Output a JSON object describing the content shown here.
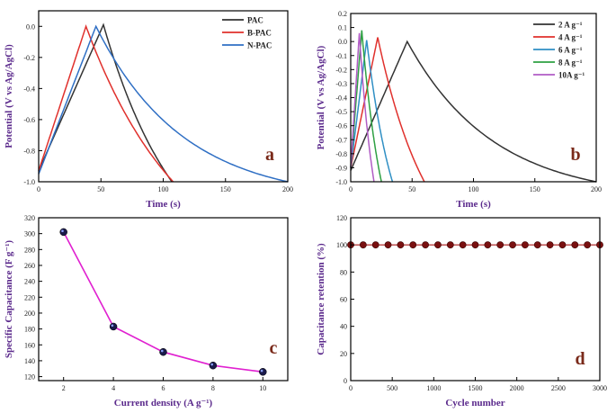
{
  "chart_data": [
    {
      "panel": "a",
      "type": "line",
      "xlabel": "Time (s)",
      "ylabel": "Potential  (V vs Ag/AgCl)",
      "xlim": [
        0,
        200
      ],
      "ylim": [
        -1.0,
        0.1
      ],
      "xticks": [
        0,
        50,
        100,
        150,
        200
      ],
      "yticks": [
        0.0,
        -0.2,
        -0.4,
        -0.6,
        -0.8,
        -1.0
      ],
      "series": [
        {
          "name": "PAC",
          "color": "#333333",
          "x": [
            0,
            52,
            107
          ],
          "y": [
            -0.93,
            0.01,
            -1.0
          ]
        },
        {
          "name": "B-PAC",
          "color": "#e0302c",
          "x": [
            0,
            38,
            108
          ],
          "y": [
            -0.93,
            0.0,
            -1.0
          ]
        },
        {
          "name": "N-PAC",
          "color": "#2f6fc4",
          "x": [
            0,
            46,
            200
          ],
          "y": [
            -0.95,
            0.0,
            -1.0
          ]
        }
      ]
    },
    {
      "panel": "b",
      "type": "line",
      "xlabel": "Time (s)",
      "ylabel": "Potential  (V vs Ag/AgCl)",
      "xlim": [
        0,
        200
      ],
      "ylim": [
        -1.0,
        0.2
      ],
      "xticks": [
        0,
        50,
        100,
        150,
        200
      ],
      "yticks": [
        0.2,
        0.1,
        0.0,
        -0.1,
        -0.2,
        -0.3,
        -0.4,
        -0.5,
        -0.6,
        -0.7,
        -0.8,
        -0.9,
        -1.0
      ],
      "series": [
        {
          "name": "2 A g⁻¹",
          "color": "#333333",
          "x": [
            0,
            46,
            200
          ],
          "y": [
            -0.92,
            0.0,
            -1.0
          ]
        },
        {
          "name": "4 A g⁻¹",
          "color": "#e0302c",
          "x": [
            0,
            22,
            60
          ],
          "y": [
            -0.9,
            0.03,
            -1.0
          ]
        },
        {
          "name": "6 A g⁻¹",
          "color": "#2f8fc4",
          "x": [
            0,
            13,
            34
          ],
          "y": [
            -0.9,
            0.01,
            -1.0
          ]
        },
        {
          "name": "8 A g⁻¹",
          "color": "#2ea043",
          "x": [
            0,
            9,
            25
          ],
          "y": [
            -0.9,
            0.08,
            -1.0
          ]
        },
        {
          "name": "10A g⁻¹",
          "color": "#b05cc4",
          "x": [
            0,
            7,
            19
          ],
          "y": [
            -0.9,
            0.06,
            -1.0
          ]
        }
      ]
    },
    {
      "panel": "c",
      "type": "line",
      "xlabel": "Current density (A g⁻¹)",
      "ylabel": "Specific Capacitance  (F g⁻¹)",
      "xlim": [
        1,
        11
      ],
      "ylim": [
        115,
        320
      ],
      "xticks": [
        2,
        4,
        6,
        8,
        10
      ],
      "yticks": [
        120,
        140,
        160,
        180,
        200,
        220,
        240,
        260,
        280,
        300,
        320
      ],
      "series": [
        {
          "name": "Specific capacitance",
          "color": "#e020d0",
          "x": [
            2,
            4,
            6,
            8,
            10
          ],
          "y": [
            302,
            183,
            151,
            134,
            126
          ]
        }
      ]
    },
    {
      "panel": "d",
      "type": "scatter",
      "xlabel": "Cycle number",
      "ylabel": "Capacitance retention  (%)",
      "xlim": [
        0,
        3000
      ],
      "ylim": [
        0,
        120
      ],
      "xticks": [
        0,
        500,
        1000,
        1500,
        2000,
        2500,
        3000
      ],
      "yticks": [
        0,
        20,
        40,
        60,
        80,
        100,
        120
      ],
      "series": [
        {
          "name": "Retention",
          "color": "#7a1010",
          "x": [
            0,
            150,
            300,
            450,
            600,
            750,
            900,
            1050,
            1200,
            1350,
            1500,
            1650,
            1800,
            1950,
            2100,
            2250,
            2400,
            2550,
            2700,
            2850,
            3000
          ],
          "y": [
            100,
            100,
            100,
            100,
            100,
            100,
            100,
            100,
            100,
            100,
            100,
            100,
            100,
            100,
            100,
            100,
            100,
            100,
            100,
            100,
            100
          ]
        }
      ]
    }
  ]
}
